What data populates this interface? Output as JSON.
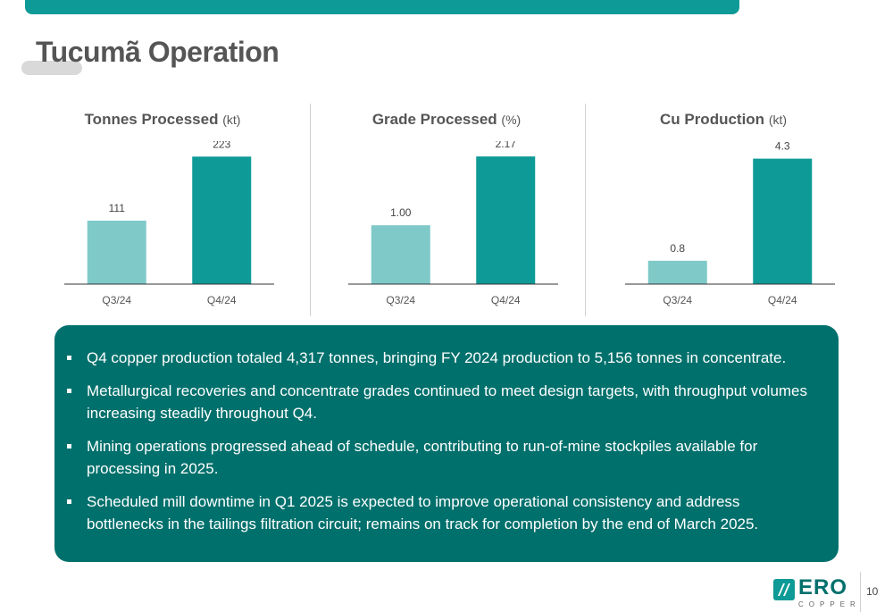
{
  "page": {
    "title": "Tucumã Operation",
    "number": "10"
  },
  "colors": {
    "accent": "#0e9a97",
    "bar_light": "#7fc9c9",
    "bar_dark": "#0e9a97",
    "box": "#00706c"
  },
  "chart_data": [
    {
      "type": "bar",
      "title": "Tonnes Processed",
      "unit": "(kt)",
      "categories": [
        "Q3/24",
        "Q4/24"
      ],
      "values": [
        111,
        223
      ],
      "labels": [
        "111",
        "223"
      ],
      "ylim": [
        0,
        250
      ],
      "grid": false
    },
    {
      "type": "bar",
      "title": "Grade Processed",
      "unit": "(%)",
      "categories": [
        "Q3/24",
        "Q4/24"
      ],
      "values": [
        1.0,
        2.17
      ],
      "labels": [
        "1.00",
        "2.17"
      ],
      "ylim": [
        0,
        2.43
      ],
      "grid": false
    },
    {
      "type": "bar",
      "title": "Cu Production",
      "unit": "(kt)",
      "categories": [
        "Q3/24",
        "Q4/24"
      ],
      "values": [
        0.8,
        4.3
      ],
      "labels": [
        "0.8",
        "4.3"
      ],
      "ylim": [
        0,
        4.9
      ],
      "grid": false
    }
  ],
  "bullets": [
    "Q4 copper production totaled 4,317 tonnes, bringing FY 2024 production to 5,156 tonnes in concentrate.",
    "Metallurgical recoveries and concentrate grades continued to meet design targets, with throughput volumes increasing steadily throughout Q4.",
    "Mining operations progressed ahead of schedule, contributing to run-of-mine stockpiles available for processing in 2025.",
    "Scheduled mill downtime in Q1 2025 is expected to improve operational consistency and address bottlenecks in the tailings filtration circuit; remains on track for completion by the end of March 2025."
  ],
  "logo": {
    "word": "ERO",
    "sub": "COPPER",
    "icon": "ero-copper-logo-icon"
  }
}
